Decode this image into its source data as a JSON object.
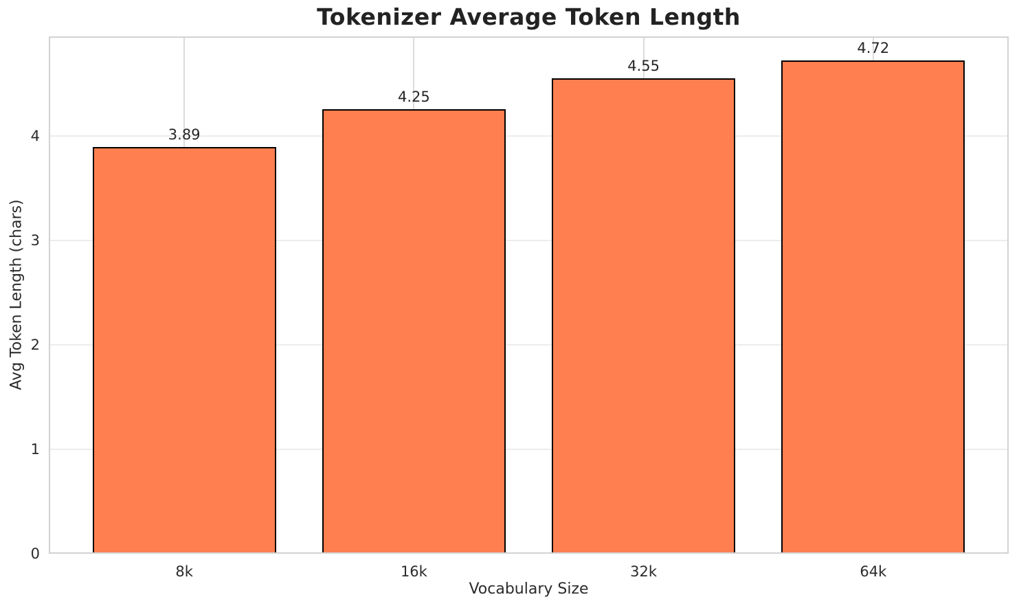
{
  "chart_data": {
    "type": "bar",
    "title": "Tokenizer Average Token Length",
    "xlabel": "Vocabulary Size",
    "ylabel": "Avg Token Length (chars)",
    "categories": [
      "8k",
      "16k",
      "32k",
      "64k"
    ],
    "values": [
      3.89,
      4.25,
      4.55,
      4.72
    ],
    "value_labels": [
      "3.89",
      "4.25",
      "4.55",
      "4.72"
    ],
    "yticks": [
      0,
      1,
      2,
      3,
      4
    ],
    "ytick_labels": [
      "0",
      "1",
      "2",
      "3",
      "4"
    ],
    "ylim": [
      0,
      4.95
    ],
    "grid": true,
    "legend": null,
    "bar_width_frac": 0.8,
    "colors": {
      "bar_fill": "#FF7F50",
      "bar_edge": "#000000",
      "grid_h": "#ececec",
      "grid_v": "#dcdcdc",
      "spine": "#d2d2d2",
      "text": "#262626"
    }
  }
}
